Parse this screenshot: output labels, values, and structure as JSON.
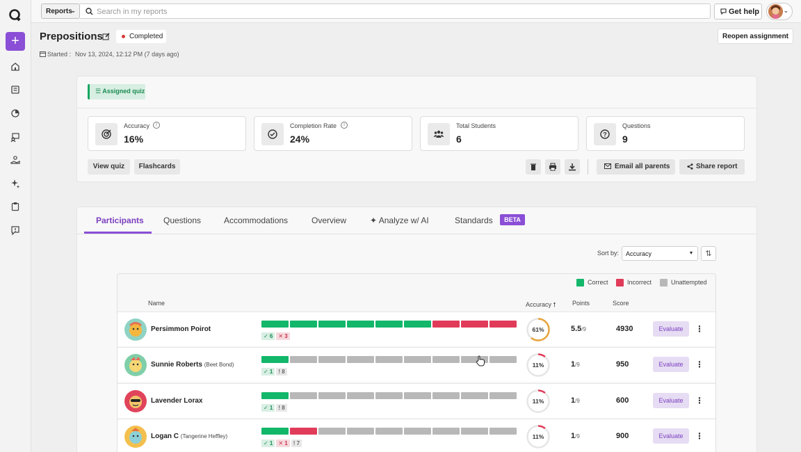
{
  "topbar": {
    "scope_label": "Reports",
    "search_placeholder": "Search in my reports",
    "help_label": "Get help"
  },
  "header": {
    "title": "Prepositions",
    "status": "Completed",
    "started_label": "Started :",
    "started_value": "Nov 13, 2024, 12:12 PM (7 days ago)",
    "reopen_label": "Reopen assignment"
  },
  "summary": {
    "assigned_label": "Assigned quiz",
    "stats": [
      {
        "label": "Accuracy",
        "value": "16%",
        "icon": "target-icon"
      },
      {
        "label": "Completion Rate",
        "value": "24%",
        "icon": "check-circle-icon"
      },
      {
        "label": "Total Students",
        "value": "6",
        "icon": "students-icon"
      },
      {
        "label": "Questions",
        "value": "9",
        "icon": "question-icon"
      }
    ],
    "view_quiz": "View quiz",
    "flashcards": "Flashcards",
    "email_parents": "Email all parents",
    "share_report": "Share report"
  },
  "tabs": {
    "participants": "Participants",
    "questions": "Questions",
    "accommodations": "Accommodations",
    "overview": "Overview",
    "analyze": "Analyze w/ AI",
    "standards": "Standards",
    "beta": "BETA"
  },
  "sort": {
    "label": "Sort by:",
    "value": "Accuracy"
  },
  "legend": {
    "correct": "Correct",
    "incorrect": "Incorrect",
    "unattempted": "Unattempted"
  },
  "table_headers": {
    "name": "Name",
    "accuracy": "Accuracy",
    "points": "Points",
    "score": "Score"
  },
  "colors": {
    "correct": "#12b76a",
    "incorrect": "#e13b5a",
    "unattempted": "#b8b8b8",
    "accent": "#8a4fd6"
  },
  "participants": [
    {
      "name": "Persimmon Poirot",
      "alias": "",
      "answers": [
        "c",
        "c",
        "c",
        "c",
        "c",
        "c",
        "i",
        "i",
        "i"
      ],
      "correct": "✓ 6",
      "incorrect": "✕ 3",
      "unattempted": "",
      "accuracy": "61%",
      "accuracy_value": 61,
      "points": "5.5",
      "points_total": "/9",
      "score": "4930",
      "evaluate": "Evaluate"
    },
    {
      "name": "Sunnie Roberts",
      "alias": "(Beet Bond)",
      "answers": [
        "c",
        "u",
        "u",
        "u",
        "u",
        "u",
        "u",
        "u",
        "u"
      ],
      "correct": "✓ 1",
      "incorrect": "",
      "unattempted": "! 8",
      "accuracy": "11%",
      "accuracy_value": 11,
      "points": "1",
      "points_total": "/9",
      "score": "950",
      "evaluate": "Evaluate"
    },
    {
      "name": "Lavender Lorax",
      "alias": "",
      "answers": [
        "c",
        "u",
        "u",
        "u",
        "u",
        "u",
        "u",
        "u",
        "u"
      ],
      "correct": "✓ 1",
      "incorrect": "",
      "unattempted": "! 8",
      "accuracy": "11%",
      "accuracy_value": 11,
      "points": "1",
      "points_total": "/9",
      "score": "600",
      "evaluate": "Evaluate"
    },
    {
      "name": "Logan C",
      "alias": "(Tangerine Heffley)",
      "answers": [
        "c",
        "i",
        "u",
        "u",
        "u",
        "u",
        "u",
        "u",
        "u"
      ],
      "correct": "✓ 1",
      "incorrect": "✕ 1",
      "unattempted": "! 7",
      "accuracy": "11%",
      "accuracy_value": 11,
      "points": "1",
      "points_total": "/9",
      "score": "900",
      "evaluate": "Evaluate"
    }
  ]
}
